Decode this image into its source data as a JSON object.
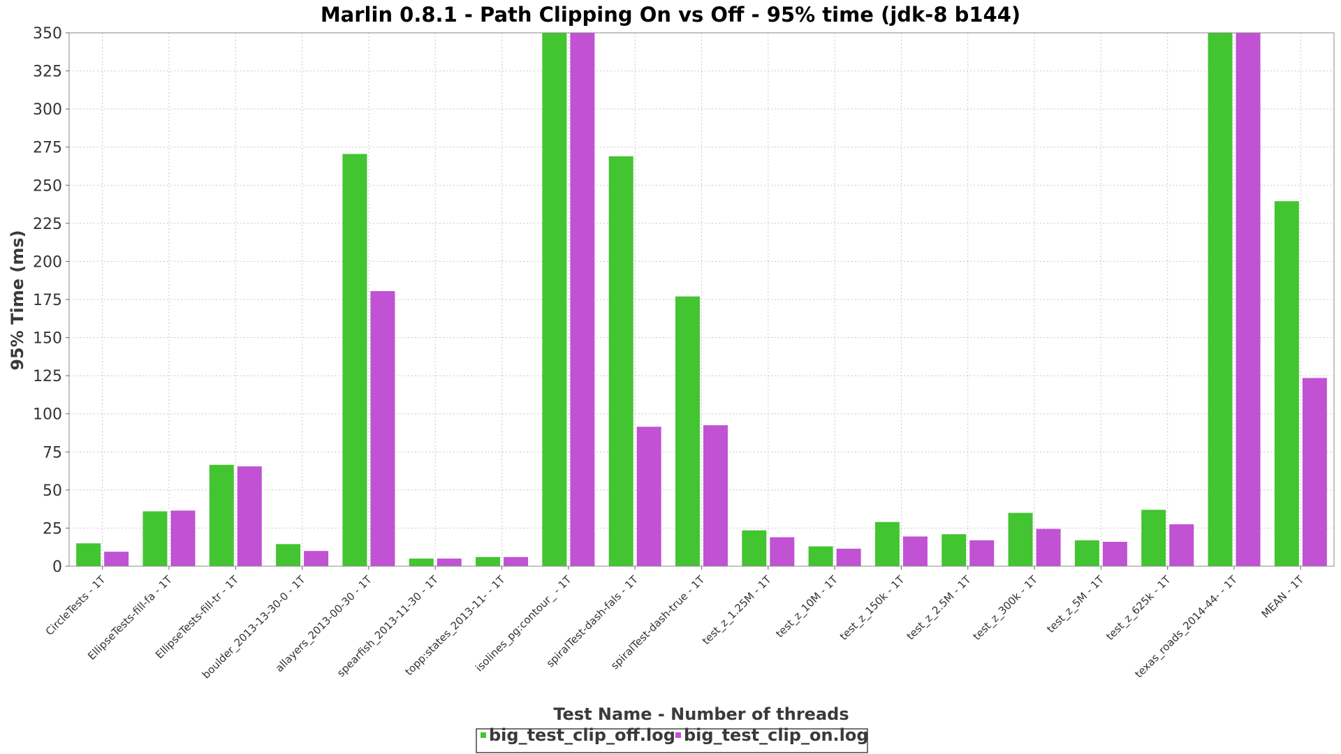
{
  "chart_data": {
    "type": "bar",
    "title": "Marlin 0.8.1 - Path Clipping On vs Off - 95% time (jdk-8 b144)",
    "xlabel": "Test Name - Number of threads",
    "ylabel": "95% Time (ms)",
    "ylim": [
      0,
      350
    ],
    "yticks": [
      0,
      25,
      50,
      75,
      100,
      125,
      150,
      175,
      200,
      225,
      250,
      275,
      300,
      325,
      350
    ],
    "grid": true,
    "legend_position": "bottom-center",
    "categories": [
      "CircleTests - 1T",
      "EllipseTests-fill-fa - 1T",
      "EllipseTests-fill-tr - 1T",
      "boulder_2013-13-30-0 - 1T",
      "allayers_2013-00-30 - 1T",
      "spearfish_2013-11-30 - 1T",
      "topp:states_2013-11- - 1T",
      "isolines_pg:contour_ - 1T",
      "spiralTest-dash-fals - 1T",
      "spiralTest-dash-true - 1T",
      "test_z_1.25M - 1T",
      "test_z_10M - 1T",
      "test_z_150k - 1T",
      "test_z_2.5M - 1T",
      "test_z_300k - 1T",
      "test_z_5M - 1T",
      "test_z_625k - 1T",
      "texas_roads_2014-44- - 1T",
      "MEAN - 1T"
    ],
    "series": [
      {
        "name": "big_test_clip_off.log",
        "color": "#43c431",
        "values": [
          15,
          36,
          66.5,
          14.5,
          270.5,
          5,
          6,
          350,
          269,
          177,
          23.5,
          13,
          29,
          21,
          35,
          17,
          37,
          350,
          239.5
        ]
      },
      {
        "name": "big_test_clip_on.log",
        "color": "#c052d3",
        "values": [
          9.5,
          36.5,
          65.5,
          10,
          180.5,
          5,
          6,
          350,
          91.5,
          92.5,
          19,
          11.5,
          19.5,
          17,
          24.5,
          16,
          27.5,
          350,
          123.5
        ]
      }
    ]
  }
}
